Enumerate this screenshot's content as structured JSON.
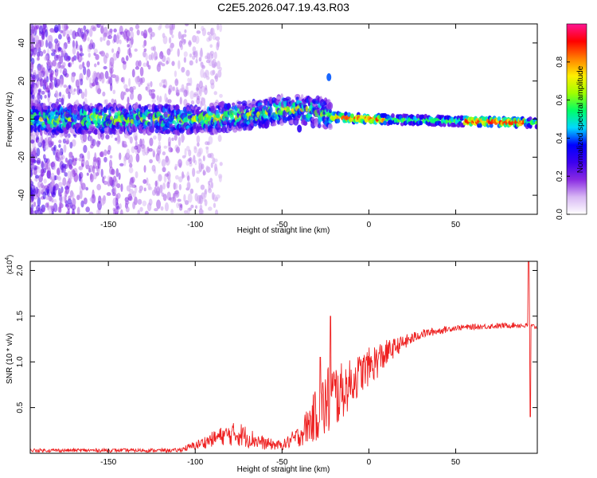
{
  "title": "C2E5.2026.047.19.43.R03",
  "chart_data": [
    {
      "type": "heatmap",
      "title": "C2E5.2026.047.19.43.R03",
      "xlabel": "Height of straight line (km)",
      "ylabel": "Frequency (Hz)",
      "xlim": [
        -195,
        97
      ],
      "ylim": [
        -50,
        50
      ],
      "xticks": [
        -150,
        -100,
        -50,
        0,
        50
      ],
      "xtick_labels": [
        "-150",
        "-100",
        "-50",
        "0",
        "50"
      ],
      "yticks": [
        -40,
        -20,
        0,
        20,
        40
      ],
      "ytick_labels": [
        "-40",
        "-20",
        "0",
        "20",
        "40"
      ],
      "ridge": [
        {
          "x": -195,
          "f": 0
        },
        {
          "x": -150,
          "f": 0
        },
        {
          "x": -100,
          "f": 0
        },
        {
          "x": -80,
          "f": 1
        },
        {
          "x": -60,
          "f": 3
        },
        {
          "x": -50,
          "f": 5
        },
        {
          "x": -40,
          "f": 5
        },
        {
          "x": -25,
          "f": 3
        },
        {
          "x": -20,
          "f": 1
        },
        {
          "x": 0,
          "f": 0
        },
        {
          "x": 50,
          "f": -1
        },
        {
          "x": 97,
          "f": -2
        }
      ],
      "features": [
        {
          "x": -23,
          "f": 22,
          "amp": 0.4
        },
        {
          "x": -40,
          "f": -5,
          "amp": 0.3
        }
      ],
      "colorbar": {
        "label": "Normalized spectral amplitude",
        "range": [
          0,
          1
        ],
        "ticks": [
          0,
          0.2,
          0.4,
          0.6,
          0.8
        ],
        "tick_labels": [
          "0.0",
          "0.2",
          "0.4",
          "0.6",
          "0.8"
        ],
        "colors": [
          "#ffffff",
          "#d8b8f4",
          "#8a2be2",
          "#3c00f0",
          "#0000ff",
          "#00d8ff",
          "#00ff66",
          "#a0ff00",
          "#ffee00",
          "#ff7f00",
          "#ff0000",
          "#ff1493"
        ]
      }
    },
    {
      "type": "line",
      "xlabel": "Height of straight line (km)",
      "ylabel": "SNR (10 * v/v)",
      "yscale_label": "(x10",
      "yscale_exp": "4",
      "yscale_close": ")",
      "xlim": [
        -195,
        97
      ],
      "ylim": [
        0,
        2.1
      ],
      "xticks": [
        -150,
        -100,
        -50,
        0,
        50
      ],
      "xtick_labels": [
        "-150",
        "-100",
        "-50",
        "0",
        "50"
      ],
      "yticks": [
        0.5,
        1.0,
        1.5,
        2.0
      ],
      "ytick_labels": [
        "0.5",
        "1.0",
        "1.5",
        "2.0"
      ],
      "color": "#ee2020",
      "envelope": [
        {
          "x": -195,
          "y": 0.03,
          "noise": 0.02
        },
        {
          "x": -110,
          "y": 0.03,
          "noise": 0.02
        },
        {
          "x": -100,
          "y": 0.08,
          "noise": 0.05
        },
        {
          "x": -85,
          "y": 0.18,
          "noise": 0.1
        },
        {
          "x": -75,
          "y": 0.2,
          "noise": 0.14
        },
        {
          "x": -60,
          "y": 0.1,
          "noise": 0.07
        },
        {
          "x": -50,
          "y": 0.08,
          "noise": 0.05
        },
        {
          "x": -40,
          "y": 0.18,
          "noise": 0.12
        },
        {
          "x": -30,
          "y": 0.4,
          "noise": 0.3
        },
        {
          "x": -22,
          "y": 0.55,
          "noise": 0.45
        },
        {
          "x": -15,
          "y": 0.65,
          "noise": 0.3
        },
        {
          "x": -5,
          "y": 0.85,
          "noise": 0.22
        },
        {
          "x": 5,
          "y": 1.0,
          "noise": 0.2
        },
        {
          "x": 15,
          "y": 1.15,
          "noise": 0.1
        },
        {
          "x": 30,
          "y": 1.3,
          "noise": 0.05
        },
        {
          "x": 50,
          "y": 1.37,
          "noise": 0.03
        },
        {
          "x": 85,
          "y": 1.4,
          "noise": 0.03
        },
        {
          "x": 97,
          "y": 1.38,
          "noise": 0.03
        }
      ],
      "peaks": [
        {
          "x": -22,
          "y": 1.5
        },
        {
          "x": -28,
          "y": 1.05
        },
        {
          "x": 92,
          "y": 2.1
        },
        {
          "x": 93,
          "y": 0.4
        }
      ]
    }
  ]
}
